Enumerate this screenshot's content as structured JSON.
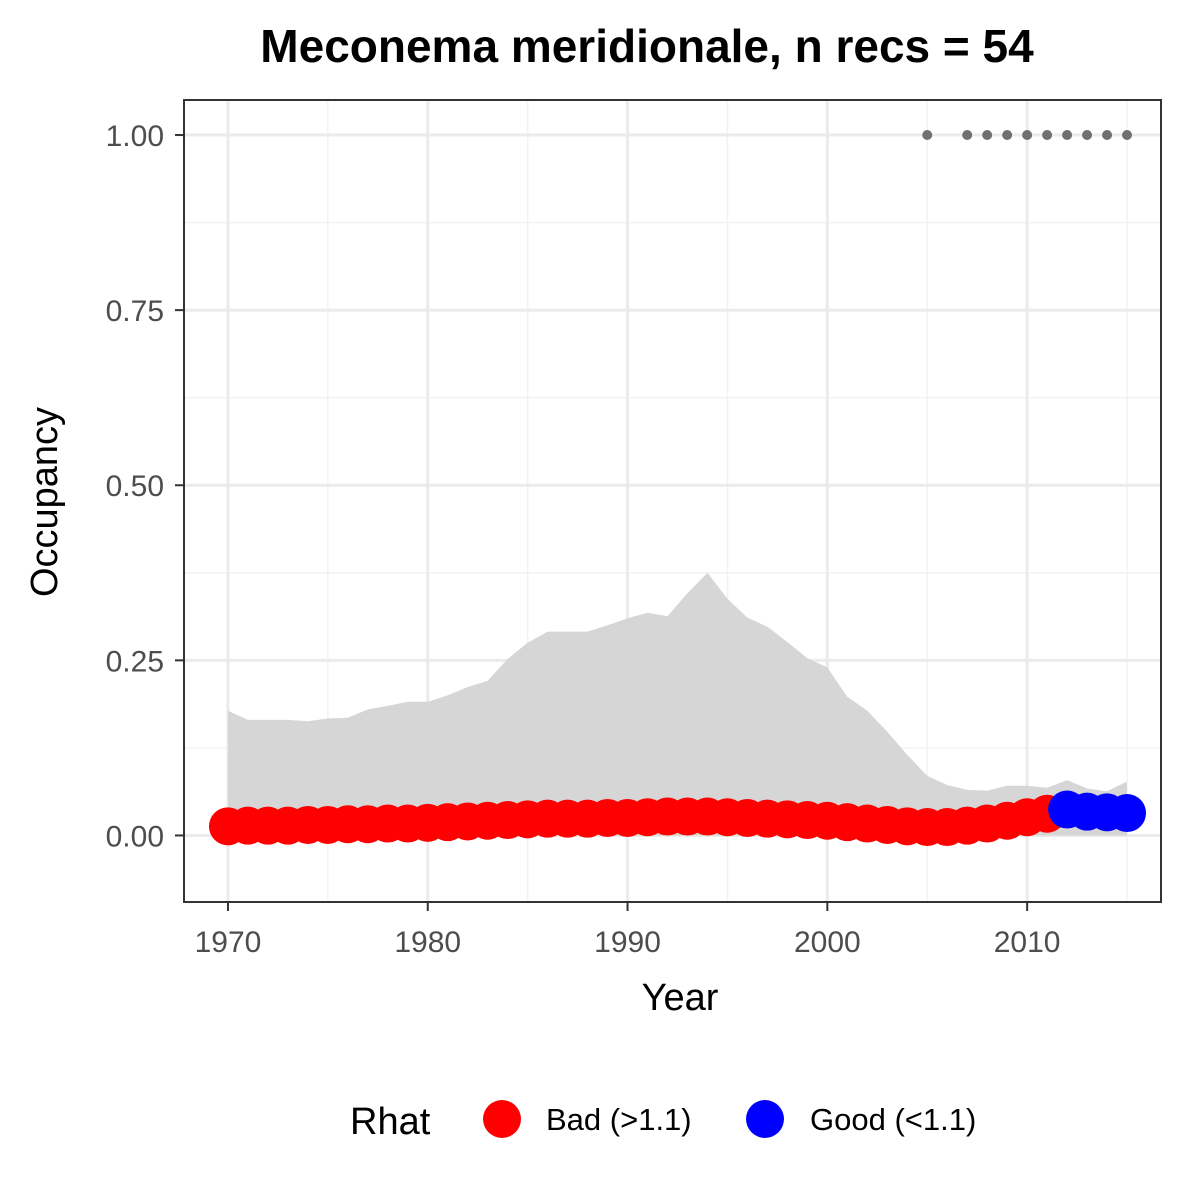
{
  "chart_data": {
    "type": "scatter",
    "title": "Meconema meridionale, n recs = 54",
    "xlabel": "Year",
    "ylabel": "Occupancy",
    "xlim": [
      1967.8,
      2016.7
    ],
    "ylim": [
      -0.095,
      1.05
    ],
    "x_ticks": [
      1970,
      1980,
      1990,
      2000,
      2010
    ],
    "x_tick_labels": [
      "1970",
      "1980",
      "1990",
      "2000",
      "2010"
    ],
    "y_ticks": [
      0,
      0.25,
      0.5,
      0.75,
      1
    ],
    "y_tick_labels": [
      "0.00",
      "0.25",
      "0.50",
      "0.75",
      "1.00"
    ],
    "grid": true,
    "legend": {
      "title": "Rhat",
      "position": "bottom",
      "entries": [
        {
          "label": "Bad (>1.1)",
          "color": "#ff0000"
        },
        {
          "label": "Good (<1.1)",
          "color": "#0000ff"
        }
      ]
    },
    "colors": {
      "bad": "#ff0000",
      "good": "#0000ff",
      "ribbon": "#d4d4d4",
      "records": "#707070"
    },
    "years": [
      1970,
      1971,
      1972,
      1973,
      1974,
      1975,
      1976,
      1977,
      1978,
      1979,
      1980,
      1981,
      1982,
      1983,
      1984,
      1985,
      1986,
      1987,
      1988,
      1989,
      1990,
      1991,
      1992,
      1993,
      1994,
      1995,
      1996,
      1997,
      1998,
      1999,
      2000,
      2001,
      2002,
      2003,
      2004,
      2005,
      2006,
      2007,
      2008,
      2009,
      2010,
      2011,
      2012,
      2013,
      2014,
      2015
    ],
    "occupancy": [
      0.013,
      0.014,
      0.014,
      0.014,
      0.015,
      0.015,
      0.016,
      0.016,
      0.017,
      0.017,
      0.018,
      0.019,
      0.02,
      0.021,
      0.022,
      0.023,
      0.024,
      0.024,
      0.024,
      0.025,
      0.025,
      0.026,
      0.027,
      0.027,
      0.027,
      0.026,
      0.025,
      0.024,
      0.023,
      0.022,
      0.021,
      0.019,
      0.017,
      0.015,
      0.013,
      0.012,
      0.012,
      0.014,
      0.017,
      0.021,
      0.026,
      0.031,
      0.037,
      0.034,
      0.033,
      0.032
    ],
    "rhat": [
      "bad",
      "bad",
      "bad",
      "bad",
      "bad",
      "bad",
      "bad",
      "bad",
      "bad",
      "bad",
      "bad",
      "bad",
      "bad",
      "bad",
      "bad",
      "bad",
      "bad",
      "bad",
      "bad",
      "bad",
      "bad",
      "bad",
      "bad",
      "bad",
      "bad",
      "bad",
      "bad",
      "bad",
      "bad",
      "bad",
      "bad",
      "bad",
      "bad",
      "bad",
      "bad",
      "bad",
      "bad",
      "bad",
      "bad",
      "bad",
      "bad",
      "bad",
      "good",
      "good",
      "good",
      "good"
    ],
    "ci_lower": [
      0,
      0,
      0,
      0,
      0,
      0,
      0,
      0,
      0,
      0,
      0,
      0,
      0,
      0,
      0,
      0,
      0,
      0,
      0,
      0,
      0,
      0,
      0,
      0,
      0,
      0,
      0,
      0,
      0,
      0,
      0,
      0,
      0,
      0,
      0,
      0,
      0,
      0,
      0,
      0,
      0,
      0,
      0,
      0,
      0,
      0
    ],
    "ci_upper": [
      0.178,
      0.165,
      0.165,
      0.165,
      0.163,
      0.167,
      0.168,
      0.18,
      0.185,
      0.191,
      0.191,
      0.2,
      0.212,
      0.221,
      0.252,
      0.275,
      0.291,
      0.291,
      0.291,
      0.3,
      0.31,
      0.318,
      0.313,
      0.346,
      0.375,
      0.338,
      0.311,
      0.298,
      0.276,
      0.253,
      0.24,
      0.198,
      0.178,
      0.148,
      0.115,
      0.085,
      0.072,
      0.065,
      0.064,
      0.071,
      0.071,
      0.068,
      0.079,
      0.067,
      0.063,
      0.077
    ],
    "record_years": [
      2005,
      2007,
      2008,
      2009,
      2010,
      2011,
      2012,
      2013,
      2014,
      2015
    ],
    "record_y": 1.0
  }
}
